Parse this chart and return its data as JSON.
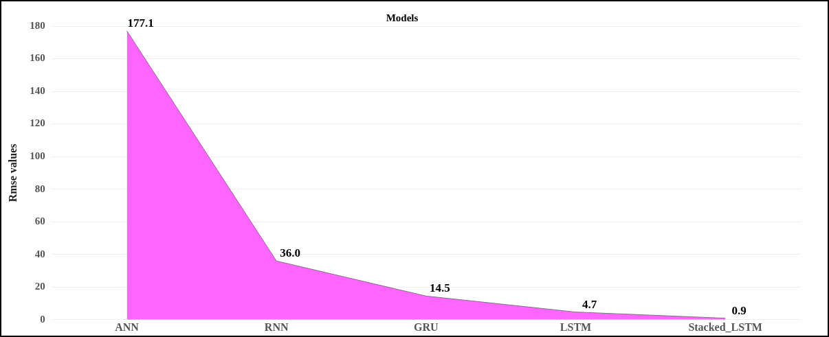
{
  "chart_data": {
    "type": "area",
    "title": "Models",
    "ylabel": "Rmse values",
    "categories": [
      "ANN",
      "RNN",
      "GRU",
      "LSTM",
      "Stacked_LSTM"
    ],
    "values": [
      177.1,
      36.0,
      14.5,
      4.7,
      0.9
    ],
    "color": "#ff66ff",
    "value_labels": [
      "177.1",
      "36.0",
      "14.5",
      "4.7",
      "0.9"
    ],
    "ylim": [
      0,
      180
    ],
    "yticks": [
      0,
      20,
      40,
      60,
      80,
      100,
      120,
      140,
      160,
      180
    ],
    "grid": "y"
  }
}
